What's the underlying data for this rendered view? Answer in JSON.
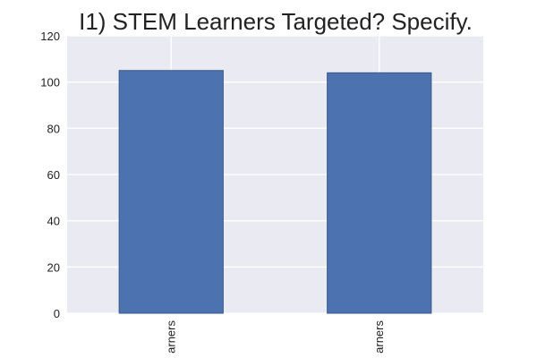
{
  "chart_data": {
    "type": "bar",
    "title": "I1) STEM Learners Targeted? Specify.",
    "categories": [
      "arners",
      "arners"
    ],
    "values": [
      105,
      104
    ],
    "ylim": [
      0,
      120
    ],
    "yticks": [
      0,
      20,
      40,
      60,
      80,
      100,
      120
    ],
    "xlabel": "",
    "ylabel": "",
    "grid": true,
    "colors": {
      "bar": "#4c72b0",
      "bar_edge": "#3a5a8c",
      "plot_background": "#eaeaf2",
      "grid": "#ffffff"
    }
  }
}
